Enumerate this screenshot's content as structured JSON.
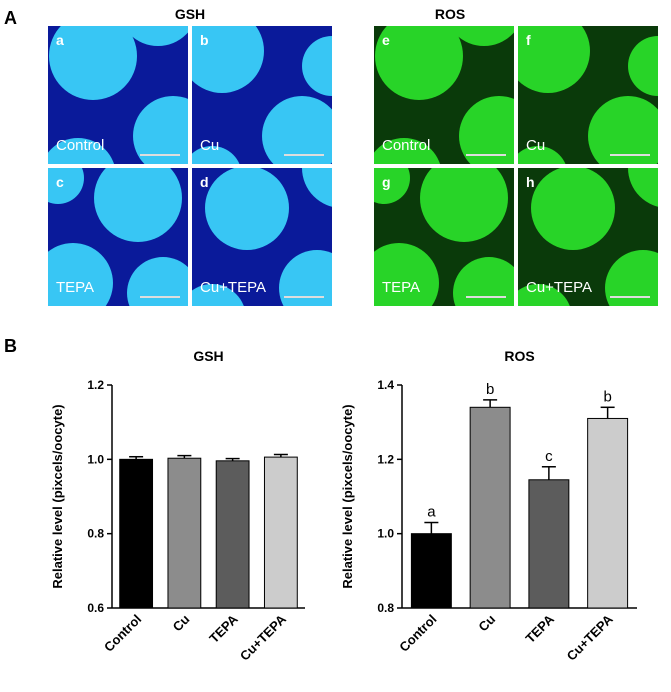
{
  "panel_labels": {
    "a": "A",
    "b": "B"
  },
  "micrographs": {
    "gsh": {
      "title": "GSH",
      "tiles": [
        {
          "letter": "a",
          "condition": "Control"
        },
        {
          "letter": "b",
          "condition": "Cu"
        },
        {
          "letter": "c",
          "condition": "TEPA"
        },
        {
          "letter": "d",
          "condition": "Cu+TEPA"
        }
      ],
      "background_color": "#0a1a9a",
      "cell_color": "#38c6f4"
    },
    "ros": {
      "title": "ROS",
      "tiles": [
        {
          "letter": "e",
          "condition": "Control"
        },
        {
          "letter": "f",
          "condition": "Cu"
        },
        {
          "letter": "g",
          "condition": "TEPA"
        },
        {
          "letter": "h",
          "condition": "Cu+TEPA"
        }
      ],
      "background_color": "#0a3a0a",
      "cell_color": "#28d428"
    }
  },
  "chart_data": [
    {
      "type": "bar",
      "title": "GSH",
      "ylabel": "Relative level (pixcels/oocyte)",
      "categories": [
        "Control",
        "Cu",
        "TEPA",
        "Cu+TEPA"
      ],
      "values": [
        1.0,
        1.003,
        0.996,
        1.006
      ],
      "errors": [
        0.007,
        0.007,
        0.006,
        0.007
      ],
      "bar_colors": [
        "#000000",
        "#8c8c8c",
        "#5c5c5c",
        "#cccccc"
      ],
      "ylim": [
        0.6,
        1.2
      ],
      "yticks": [
        "0.6",
        "0.8",
        "1.0",
        "1.2"
      ],
      "significance": [
        "",
        "",
        "",
        ""
      ]
    },
    {
      "type": "bar",
      "title": "ROS",
      "ylabel": "Relative level (pixcels/oocyte)",
      "categories": [
        "Control",
        "Cu",
        "TEPA",
        "Cu+TEPA"
      ],
      "values": [
        1.0,
        1.34,
        1.145,
        1.31
      ],
      "errors": [
        0.03,
        0.02,
        0.035,
        0.03
      ],
      "bar_colors": [
        "#000000",
        "#8c8c8c",
        "#5c5c5c",
        "#cccccc"
      ],
      "ylim": [
        0.8,
        1.4
      ],
      "yticks": [
        "0.8",
        "1.0",
        "1.2",
        "1.4"
      ],
      "significance": [
        "a",
        "b",
        "c",
        "b"
      ]
    }
  ]
}
